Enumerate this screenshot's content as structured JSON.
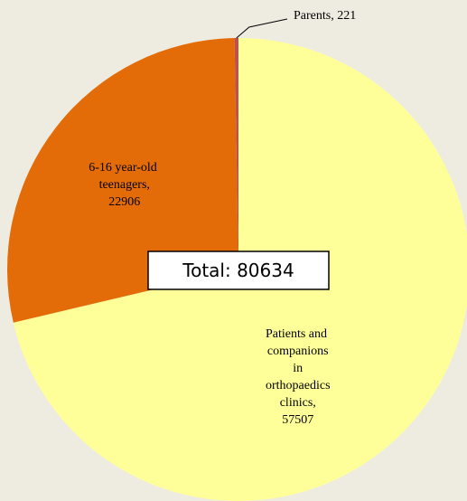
{
  "chart_data": {
    "type": "pie",
    "values": [
      57507,
      22906,
      221
    ],
    "value_labels": [
      "Patients and companions in orthopaedics clinics, 57507",
      "6-16 year-old teenagers, 22906",
      "Parents, 221"
    ],
    "colors": [
      "#ffff99",
      "#e36c09",
      "#c0504d"
    ],
    "annotation": "Total: 80634"
  }
}
